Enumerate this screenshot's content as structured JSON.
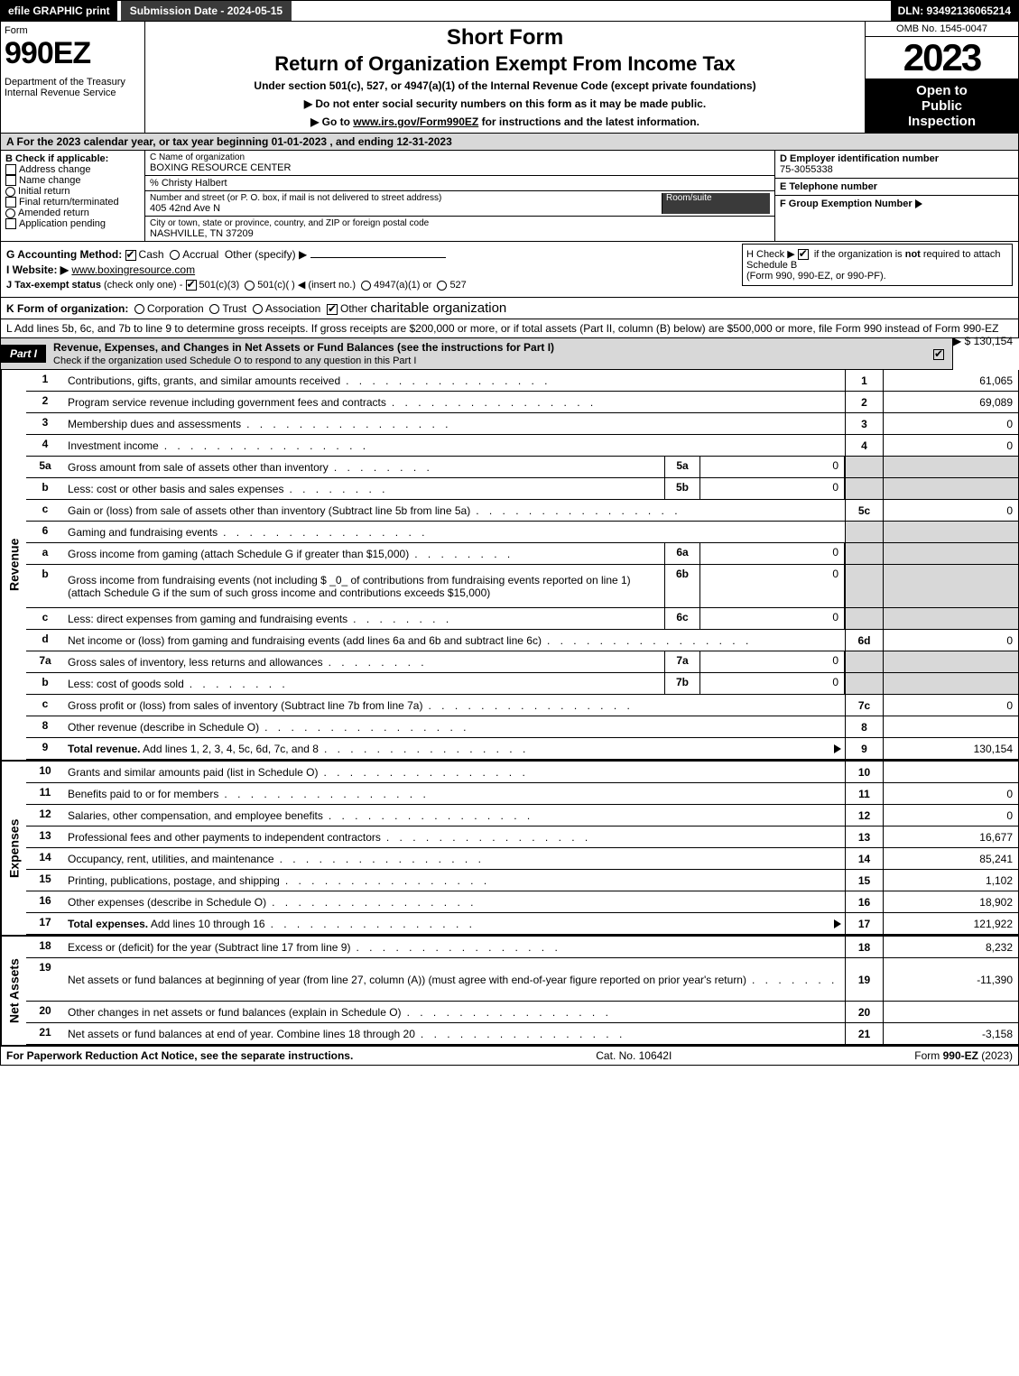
{
  "top_bar": {
    "efile": "efile GRAPHIC print",
    "submission_label": "Submission Date - 2024-05-15",
    "dln": "DLN: 93492136065214"
  },
  "header": {
    "form_word": "Form",
    "form_number": "990EZ",
    "dept": "Department of the Treasury\nInternal Revenue Service",
    "short_form": "Short Form",
    "title": "Return of Organization Exempt From Income Tax",
    "sub1": "Under section 501(c), 527, or 4947(a)(1) of the Internal Revenue Code (except private foundations)",
    "sub2": "▶ Do not enter social security numbers on this form as it may be made public.",
    "sub3_prefix": "▶ Go to ",
    "sub3_link": "www.irs.gov/Form990EZ",
    "sub3_suffix": " for instructions and the latest information.",
    "omb": "OMB No. 1545-0047",
    "year": "2023",
    "open1": "Open to",
    "open2": "Public",
    "open3": "Inspection"
  },
  "row_a": "A  For the 2023 calendar year, or tax year beginning 01-01-2023 , and ending 12-31-2023",
  "col_b": {
    "hdr": "B  Check if applicable:",
    "opts": [
      "Address change",
      "Name change",
      "Initial return",
      "Final return/terminated",
      "Amended return",
      "Application pending"
    ]
  },
  "col_c": {
    "name_lbl": "C Name of organization",
    "name": "BOXING RESOURCE CENTER",
    "care_of": "% Christy Halbert",
    "street_lbl": "Number and street (or P. O. box, if mail is not delivered to street address)",
    "room_lbl": "Room/suite",
    "street": "405 42nd Ave N",
    "city_lbl": "City or town, state or province, country, and ZIP or foreign postal code",
    "city": "NASHVILLE, TN  37209"
  },
  "col_def": {
    "d_lbl": "D Employer identification number",
    "d_val": "75-3055338",
    "e_lbl": "E Telephone number",
    "e_val": "",
    "f_lbl": "F Group Exemption Number",
    "f_tri": "▶"
  },
  "g": {
    "label": "G Accounting Method:",
    "cash": "Cash",
    "accrual": "Accrual",
    "other": "Other (specify) ▶"
  },
  "h": {
    "text1": "H  Check ▶ ",
    "text2": " if the organization is ",
    "not": "not",
    "text3": " required to attach Schedule B",
    "text4": "(Form 990, 990-EZ, or 990-PF)."
  },
  "i": {
    "label": "I Website: ▶",
    "val": "www.boxingresource.com"
  },
  "j": {
    "label": "J Tax-exempt status",
    "sub": "(check only one) -",
    "o1": "501(c)(3)",
    "o2": "501(c)( )",
    "ins": "◀ (insert no.)",
    "o3": "4947(a)(1) or",
    "o4": "527"
  },
  "k": {
    "label": "K Form of organization:",
    "opts": [
      "Corporation",
      "Trust",
      "Association",
      "Other"
    ],
    "other_val": "charitable organization"
  },
  "l": {
    "text": "L Add lines 5b, 6c, and 7b to line 9 to determine gross receipts. If gross receipts are $200,000 or more, or if total assets (Part II, column (B) below) are $500,000 or more, file Form 990 instead of Form 990-EZ",
    "amt": "▶ $ 130,154"
  },
  "part1": {
    "tag": "Part I",
    "title": "Revenue, Expenses, and Changes in Net Assets or Fund Balances (see the instructions for Part I)",
    "sub": "Check if the organization used Schedule O to respond to any question in this Part I"
  },
  "sections": {
    "revenue": "Revenue",
    "expenses": "Expenses",
    "netassets": "Net Assets"
  },
  "lines": [
    {
      "n": "1",
      "d": "Contributions, gifts, grants, and similar amounts received",
      "ln": "1",
      "v": "61,065"
    },
    {
      "n": "2",
      "d": "Program service revenue including government fees and contracts",
      "ln": "2",
      "v": "69,089"
    },
    {
      "n": "3",
      "d": "Membership dues and assessments",
      "ln": "3",
      "v": "0"
    },
    {
      "n": "4",
      "d": "Investment income",
      "ln": "4",
      "v": "0"
    },
    {
      "n": "5a",
      "d": "Gross amount from sale of assets other than inventory",
      "sn": "5a",
      "sv": "0",
      "shade": true
    },
    {
      "n": "b",
      "d": "Less: cost or other basis and sales expenses",
      "sn": "5b",
      "sv": "0",
      "shade": true
    },
    {
      "n": "c",
      "d": "Gain or (loss) from sale of assets other than inventory (Subtract line 5b from line 5a)",
      "ln": "5c",
      "v": "0"
    },
    {
      "n": "6",
      "d": "Gaming and fundraising events",
      "shade": true
    },
    {
      "n": "a",
      "d": "Gross income from gaming (attach Schedule G if greater than $15,000)",
      "sn": "6a",
      "sv": "0",
      "shade": true
    },
    {
      "n": "b",
      "d": "Gross income from fundraising events (not including $ _0_ of contributions from fundraising events reported on line 1) (attach Schedule G if the sum of such gross income and contributions exceeds $15,000)",
      "sn": "6b",
      "sv": "0",
      "shade": true,
      "tall": true
    },
    {
      "n": "c",
      "d": "Less: direct expenses from gaming and fundraising events",
      "sn": "6c",
      "sv": "0",
      "shade": true
    },
    {
      "n": "d",
      "d": "Net income or (loss) from gaming and fundraising events (add lines 6a and 6b and subtract line 6c)",
      "ln": "6d",
      "v": "0"
    },
    {
      "n": "7a",
      "d": "Gross sales of inventory, less returns and allowances",
      "sn": "7a",
      "sv": "0",
      "shade": true
    },
    {
      "n": "b",
      "d": "Less: cost of goods sold",
      "sn": "7b",
      "sv": "0",
      "shade": true
    },
    {
      "n": "c",
      "d": "Gross profit or (loss) from sales of inventory (Subtract line 7b from line 7a)",
      "ln": "7c",
      "v": "0"
    },
    {
      "n": "8",
      "d": "Other revenue (describe in Schedule O)",
      "ln": "8",
      "v": ""
    },
    {
      "n": "9",
      "d": "Total revenue. Add lines 1, 2, 3, 4, 5c, 6d, 7c, and 8",
      "ln": "9",
      "v": "130,154",
      "bold": true,
      "arrow": true
    }
  ],
  "exp_lines": [
    {
      "n": "10",
      "d": "Grants and similar amounts paid (list in Schedule O)",
      "ln": "10",
      "v": ""
    },
    {
      "n": "11",
      "d": "Benefits paid to or for members",
      "ln": "11",
      "v": "0"
    },
    {
      "n": "12",
      "d": "Salaries, other compensation, and employee benefits",
      "ln": "12",
      "v": "0"
    },
    {
      "n": "13",
      "d": "Professional fees and other payments to independent contractors",
      "ln": "13",
      "v": "16,677"
    },
    {
      "n": "14",
      "d": "Occupancy, rent, utilities, and maintenance",
      "ln": "14",
      "v": "85,241"
    },
    {
      "n": "15",
      "d": "Printing, publications, postage, and shipping",
      "ln": "15",
      "v": "1,102"
    },
    {
      "n": "16",
      "d": "Other expenses (describe in Schedule O)",
      "ln": "16",
      "v": "18,902"
    },
    {
      "n": "17",
      "d": "Total expenses. Add lines 10 through 16",
      "ln": "17",
      "v": "121,922",
      "bold": true,
      "arrow": true
    }
  ],
  "na_lines": [
    {
      "n": "18",
      "d": "Excess or (deficit) for the year (Subtract line 17 from line 9)",
      "ln": "18",
      "v": "8,232"
    },
    {
      "n": "19",
      "d": "Net assets or fund balances at beginning of year (from line 27, column (A)) (must agree with end-of-year figure reported on prior year's return)",
      "ln": "19",
      "v": "-11,390",
      "tall": true
    },
    {
      "n": "20",
      "d": "Other changes in net assets or fund balances (explain in Schedule O)",
      "ln": "20",
      "v": ""
    },
    {
      "n": "21",
      "d": "Net assets or fund balances at end of year. Combine lines 18 through 20",
      "ln": "21",
      "v": "-3,158"
    }
  ],
  "footer": {
    "l": "For Paperwork Reduction Act Notice, see the separate instructions.",
    "m": "Cat. No. 10642I",
    "r": "Form 990-EZ (2023)"
  },
  "dots": ". . . . . . . . . . . . . . . . . . . . . . . . . . . . . ."
}
